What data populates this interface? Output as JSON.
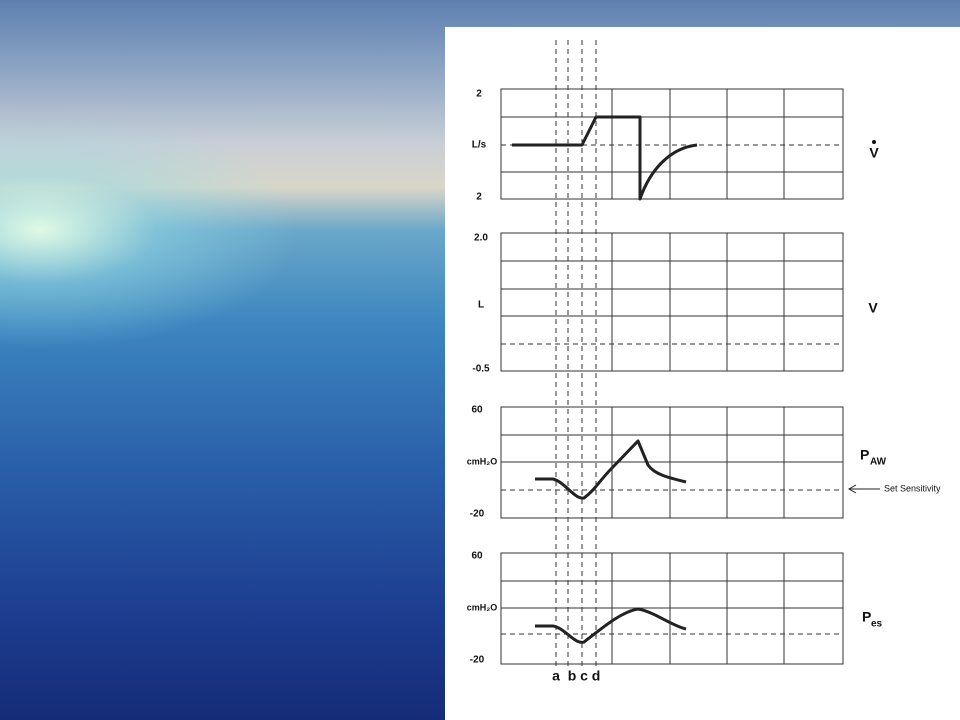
{
  "flow": {
    "top": "2",
    "unit": "L/s",
    "bottom": "2",
    "name": "V"
  },
  "volume": {
    "top": "2.0",
    "unit": "L",
    "bottom": "-0.5",
    "name": "V"
  },
  "paw": {
    "top": "60",
    "unit": "cmH₂O",
    "bottom": "-20",
    "name": "P",
    "sub": "AW",
    "annotation": "Set Sensitivity"
  },
  "pes": {
    "top": "60",
    "unit": "cmH₂O",
    "bottom": "-20",
    "name": "P",
    "sub": "es"
  },
  "phases": [
    "a",
    "b",
    "c",
    "d"
  ]
}
